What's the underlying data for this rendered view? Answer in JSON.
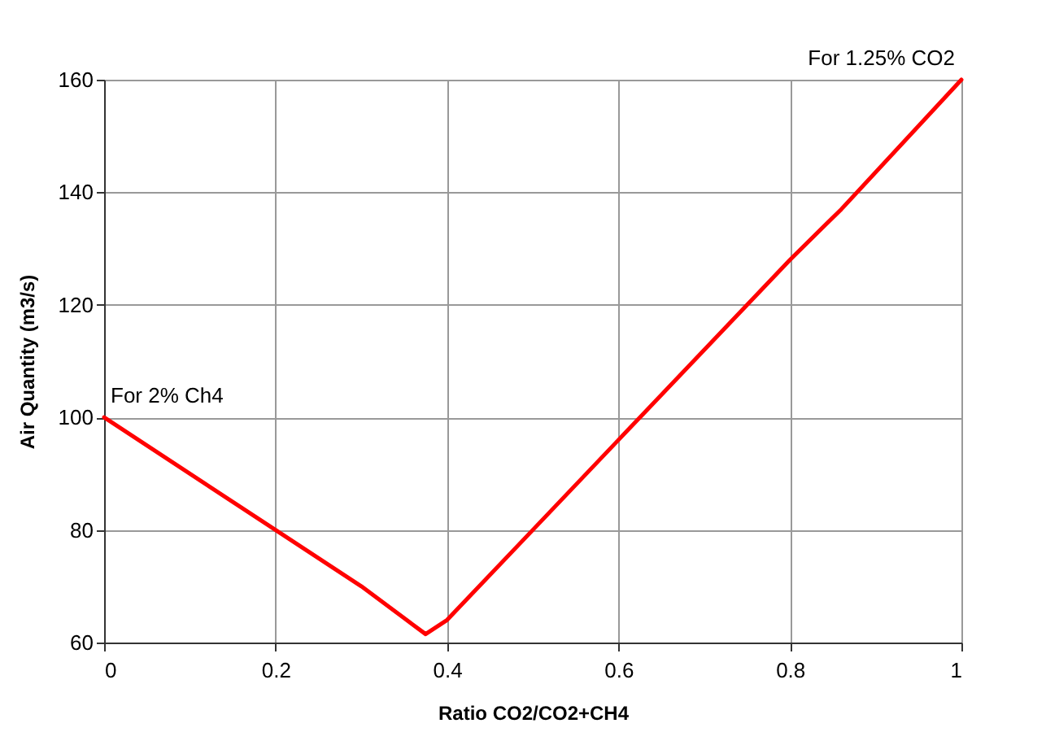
{
  "chart_data": {
    "type": "line",
    "xlabel": "Ratio CO2/CO2+CH4",
    "ylabel": "Air Quantity (m3/s)",
    "x": [
      0,
      0.2,
      0.3,
      0.375,
      0.4,
      0.5,
      0.6,
      0.8,
      0.86,
      1
    ],
    "series": [
      {
        "color": "#ff0000",
        "values": [
          100,
          80,
          70,
          61.5,
          64,
          80,
          96,
          128,
          137,
          160
        ]
      }
    ],
    "xlim": [
      0,
      1
    ],
    "xticks": [
      0,
      0.2,
      0.4,
      0.6,
      0.8,
      1
    ],
    "ylim": [
      60,
      160
    ],
    "yticks": [
      60,
      80,
      100,
      120,
      140,
      160
    ],
    "grid": true,
    "line_style": "solid",
    "annotations": [
      {
        "text": "For 2% Ch4",
        "x": 0,
        "y": 100
      },
      {
        "text": "For 1.25% CO2",
        "x": 1,
        "y": 160
      }
    ]
  }
}
